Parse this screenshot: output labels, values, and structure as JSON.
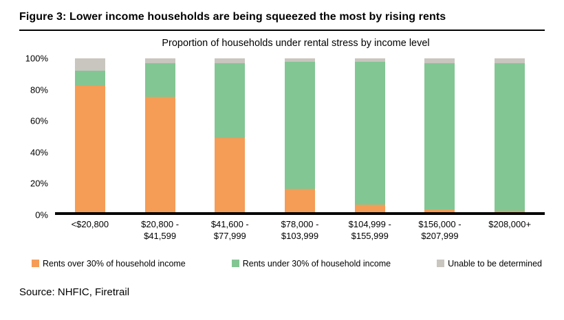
{
  "figure": {
    "title": "Figure 3: Lower income households are being squeezed the most by rising rents",
    "source": "Source: NHFIC, Firetrail"
  },
  "chart_data": {
    "type": "bar",
    "stacked": true,
    "title": "Proportion of households under rental stress by income level",
    "categories": [
      "<$20,800",
      "$20,800 -\n$41,599",
      "$41,600 -\n$77,999",
      "$78,000 -\n$103,999",
      "$104,999 -\n$155,999",
      "$156,000 -\n$207,999",
      "$208,000+"
    ],
    "series": [
      {
        "name": "Rents over 30% of household income",
        "color": "#F59C56",
        "values": [
          82,
          75,
          48,
          15,
          5,
          2,
          1
        ]
      },
      {
        "name": "Rents under 30% of household income",
        "color": "#82C693",
        "values": [
          10,
          22,
          49,
          83,
          93,
          95,
          96
        ]
      },
      {
        "name": "Unable to be determined",
        "color": "#C9C5BF",
        "values": [
          8,
          3,
          3,
          2,
          2,
          3,
          3
        ]
      }
    ],
    "xlabel": "",
    "ylabel": "",
    "ylim": [
      0,
      100
    ],
    "yticks": [
      "0%",
      "20%",
      "40%",
      "60%",
      "80%",
      "100%"
    ],
    "ytick_values": [
      0,
      20,
      40,
      60,
      80,
      100
    ],
    "legend_position": "bottom",
    "grid": false,
    "axis_color": "#000000"
  }
}
